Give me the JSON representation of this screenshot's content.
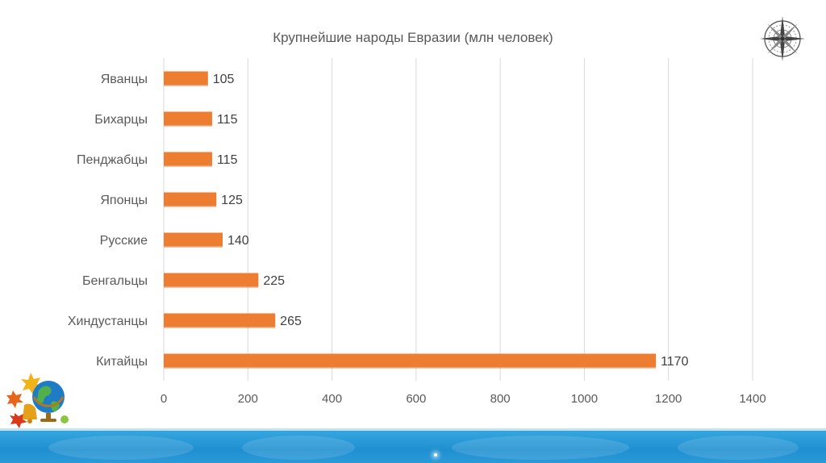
{
  "chart_data": {
    "type": "bar",
    "orientation": "horizontal",
    "title": "Крупнейшие народы Евразии (млн человек)",
    "categories": [
      "Яванцы",
      "Бихарцы",
      "Пенджабцы",
      "Японцы",
      "Русские",
      "Бенгальцы",
      "Хиндустанцы",
      "Китайцы"
    ],
    "values": [
      105,
      115,
      115,
      125,
      140,
      225,
      265,
      1170
    ],
    "data_labels": [
      "105",
      "115",
      "115",
      "125",
      "140",
      "225",
      "265",
      "1170"
    ],
    "xlim": [
      0,
      1400
    ],
    "xticks": [
      0,
      200,
      400,
      600,
      800,
      1000,
      1200,
      1400
    ],
    "xtick_labels": [
      "0",
      "200",
      "400",
      "600",
      "800",
      "1000",
      "1200",
      "1400"
    ],
    "grid": "vertical",
    "legend": "none",
    "bar_color": "#ed7d31"
  },
  "decorations": {
    "compass_icon": "compass-rose-icon",
    "emblem_icon": "globe-with-bell-and-autumn-leaves-icon",
    "footer": "blue-world-map-band",
    "colors": {
      "footer_blue": "#2a9ad8",
      "bar": "#ed7d31"
    }
  }
}
